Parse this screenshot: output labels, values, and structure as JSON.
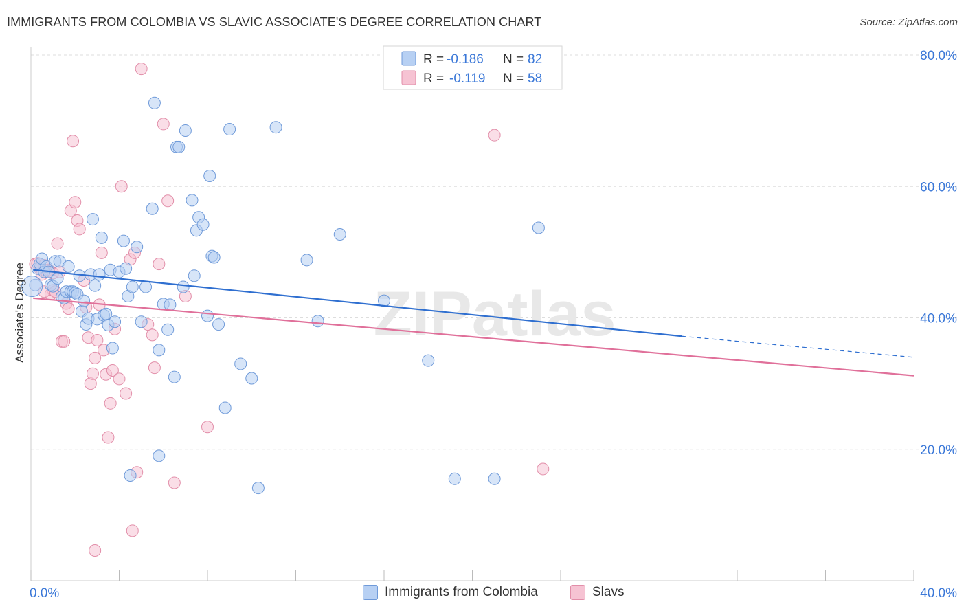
{
  "header": {
    "title": "IMMIGRANTS FROM COLOMBIA VS SLAVIC ASSOCIATE'S DEGREE CORRELATION CHART",
    "source": "Source: ZipAtlas.com"
  },
  "watermark": "ZIPatlas",
  "colors": {
    "blue_fill": "#b7d0f3",
    "blue_stroke": "#6f9ad9",
    "blue_line": "#2f6fd0",
    "pink_fill": "#f6c3d3",
    "pink_stroke": "#e28ea9",
    "pink_line": "#e0709a",
    "axis_text": "#3b78d8",
    "grid": "#dddddd"
  },
  "stats_legend": [
    {
      "r_label": "R =",
      "r_value": "-0.186",
      "n_label": "N =",
      "n_value": "82"
    },
    {
      "r_label": "R =",
      "r_value": "-0.119",
      "n_label": "N =",
      "n_value": "58"
    }
  ],
  "chart_data": {
    "type": "scatter",
    "xlabel": "",
    "ylabel": "Associate's Degree",
    "xlim": [
      0,
      40
    ],
    "ylim": [
      0,
      80
    ],
    "x_tick_labels": [
      "0.0%",
      "40.0%"
    ],
    "y_ticks": [
      20,
      40,
      60,
      80
    ],
    "y_tick_labels": [
      "20.0%",
      "40.0%",
      "60.0%",
      "80.0%"
    ],
    "legend_position": "bottom",
    "series": [
      {
        "name": "Immigrants from Colombia",
        "color": "blue",
        "trend": {
          "x1": 0.1,
          "y1": 47.3,
          "x2_solid": 29.5,
          "y2_solid": 37.2,
          "x2": 40.0,
          "y2": 34.0
        },
        "points": [
          [
            0.2,
            45.0
          ],
          [
            0.3,
            47.5
          ],
          [
            0.4,
            48.2
          ],
          [
            0.5,
            49.0
          ],
          [
            0.6,
            47.0
          ],
          [
            0.7,
            47.8
          ],
          [
            0.8,
            47.0
          ],
          [
            0.9,
            45.0
          ],
          [
            1.0,
            44.8
          ],
          [
            1.1,
            48.6
          ],
          [
            1.2,
            46.0
          ],
          [
            1.3,
            48.6
          ],
          [
            1.4,
            43.2
          ],
          [
            1.5,
            43.0
          ],
          [
            1.6,
            44.0
          ],
          [
            1.7,
            47.8
          ],
          [
            1.8,
            44.0
          ],
          [
            1.9,
            44.0
          ],
          [
            2.0,
            43.8
          ],
          [
            2.1,
            43.6
          ],
          [
            2.2,
            46.4
          ],
          [
            2.3,
            41.0
          ],
          [
            2.4,
            42.6
          ],
          [
            2.5,
            39.0
          ],
          [
            2.6,
            39.9
          ],
          [
            2.7,
            46.6
          ],
          [
            2.8,
            55.0
          ],
          [
            2.9,
            44.9
          ],
          [
            3.0,
            39.8
          ],
          [
            3.1,
            46.6
          ],
          [
            3.2,
            52.2
          ],
          [
            3.3,
            40.4
          ],
          [
            3.4,
            40.6
          ],
          [
            3.5,
            38.9
          ],
          [
            3.6,
            47.3
          ],
          [
            3.7,
            35.4
          ],
          [
            3.8,
            39.4
          ],
          [
            4.0,
            47.0
          ],
          [
            4.2,
            51.7
          ],
          [
            4.3,
            47.5
          ],
          [
            4.4,
            43.3
          ],
          [
            4.6,
            44.7
          ],
          [
            4.8,
            50.8
          ],
          [
            5.0,
            39.4
          ],
          [
            5.2,
            44.7
          ],
          [
            5.5,
            56.6
          ],
          [
            5.6,
            72.7
          ],
          [
            5.8,
            35.1
          ],
          [
            6.0,
            42.1
          ],
          [
            6.2,
            38.2
          ],
          [
            6.3,
            42.0
          ],
          [
            6.5,
            31.0
          ],
          [
            6.6,
            66.0
          ],
          [
            6.7,
            66.0
          ],
          [
            6.9,
            44.7
          ],
          [
            7.0,
            68.5
          ],
          [
            7.3,
            57.9
          ],
          [
            7.4,
            46.4
          ],
          [
            7.5,
            53.3
          ],
          [
            7.6,
            55.3
          ],
          [
            7.8,
            54.2
          ],
          [
            8.0,
            40.3
          ],
          [
            8.1,
            61.6
          ],
          [
            8.2,
            49.4
          ],
          [
            8.3,
            49.2
          ],
          [
            8.5,
            39.0
          ],
          [
            8.8,
            26.3
          ],
          [
            9.0,
            68.7
          ],
          [
            9.5,
            33.0
          ],
          [
            10.0,
            30.8
          ],
          [
            10.3,
            14.1
          ],
          [
            11.1,
            69.0
          ],
          [
            12.5,
            48.8
          ],
          [
            13.0,
            39.5
          ],
          [
            14.0,
            52.7
          ],
          [
            16.0,
            42.6
          ],
          [
            18.0,
            33.5
          ],
          [
            19.2,
            15.5
          ],
          [
            21.0,
            15.5
          ],
          [
            23.0,
            53.7
          ],
          [
            4.5,
            16.0
          ],
          [
            5.8,
            19.0
          ]
        ]
      },
      {
        "name": "Slavs",
        "color": "pink",
        "trend": {
          "x1": 0.1,
          "y1": 43.0,
          "x2": 40.0,
          "y2": 31.2
        },
        "points": [
          [
            0.2,
            48.2
          ],
          [
            0.3,
            48.3
          ],
          [
            0.4,
            47.5
          ],
          [
            0.5,
            46.6
          ],
          [
            0.6,
            48.0
          ],
          [
            0.7,
            47.0
          ],
          [
            0.8,
            47.3
          ],
          [
            0.9,
            43.6
          ],
          [
            1.0,
            44.2
          ],
          [
            1.1,
            44.0
          ],
          [
            1.2,
            51.3
          ],
          [
            1.4,
            36.4
          ],
          [
            1.5,
            36.4
          ],
          [
            1.6,
            42.2
          ],
          [
            1.7,
            41.4
          ],
          [
            1.8,
            56.3
          ],
          [
            1.9,
            66.9
          ],
          [
            2.0,
            57.6
          ],
          [
            2.1,
            54.8
          ],
          [
            2.2,
            53.5
          ],
          [
            2.4,
            45.7
          ],
          [
            2.5,
            41.6
          ],
          [
            2.6,
            37.0
          ],
          [
            2.7,
            30.0
          ],
          [
            2.8,
            31.5
          ],
          [
            2.9,
            33.9
          ],
          [
            3.0,
            36.6
          ],
          [
            3.1,
            42.0
          ],
          [
            3.2,
            49.9
          ],
          [
            3.3,
            35.1
          ],
          [
            3.4,
            31.4
          ],
          [
            3.5,
            21.8
          ],
          [
            3.6,
            27.0
          ],
          [
            3.7,
            32.0
          ],
          [
            3.8,
            38.3
          ],
          [
            4.0,
            30.7
          ],
          [
            4.1,
            60.0
          ],
          [
            4.3,
            28.5
          ],
          [
            4.5,
            48.9
          ],
          [
            4.7,
            49.9
          ],
          [
            5.0,
            77.9
          ],
          [
            5.3,
            39.0
          ],
          [
            5.5,
            37.4
          ],
          [
            5.6,
            32.4
          ],
          [
            5.8,
            48.2
          ],
          [
            6.0,
            69.5
          ],
          [
            6.2,
            57.8
          ],
          [
            6.5,
            14.9
          ],
          [
            7.0,
            43.3
          ],
          [
            8.0,
            23.4
          ],
          [
            4.6,
            7.6
          ],
          [
            4.8,
            16.5
          ],
          [
            2.9,
            4.6
          ],
          [
            21.0,
            67.8
          ],
          [
            23.2,
            17.0
          ],
          [
            1.0,
            46.8
          ],
          [
            0.6,
            44.0
          ],
          [
            1.3,
            47.0
          ]
        ]
      }
    ]
  }
}
